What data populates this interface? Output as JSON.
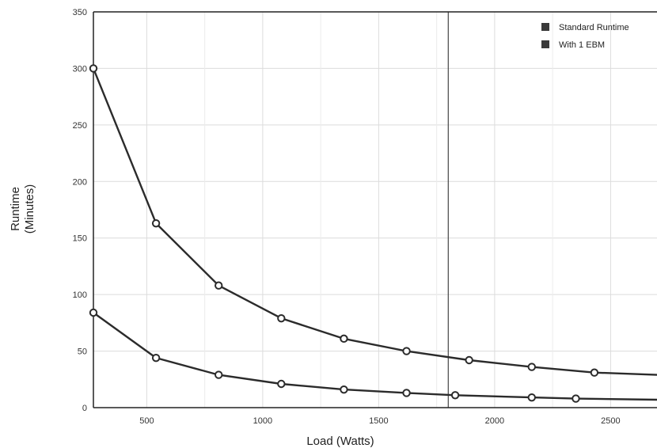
{
  "chart_data": {
    "type": "line",
    "xlabel": "Load (Watts)",
    "ylabel": [
      "Runtime",
      "(Minutes)"
    ],
    "xlim": [
      270,
      2700
    ],
    "ylim": [
      0,
      350
    ],
    "x_ticks": [
      500,
      1000,
      1500,
      2000,
      2500
    ],
    "y_ticks": [
      0,
      50,
      100,
      150,
      200,
      250,
      300,
      350
    ],
    "grid": true,
    "legend_position": "top-right",
    "vertical_reference_x": 1800,
    "series": [
      {
        "name": "Standard Runtime",
        "color": "#2b2b2b",
        "points": [
          [
            270,
            84
          ],
          [
            540,
            44
          ],
          [
            810,
            29
          ],
          [
            1080,
            21
          ],
          [
            1350,
            16
          ],
          [
            1620,
            13
          ],
          [
            1830,
            11
          ],
          [
            2160,
            9
          ],
          [
            2350,
            8
          ],
          [
            2700,
            7
          ]
        ],
        "markers": [
          true,
          true,
          true,
          true,
          true,
          true,
          true,
          true,
          true,
          false
        ]
      },
      {
        "name": "With 1 EBM",
        "color": "#2b2b2b",
        "points": [
          [
            270,
            300
          ],
          [
            540,
            163
          ],
          [
            810,
            108
          ],
          [
            1080,
            79
          ],
          [
            1350,
            61
          ],
          [
            1620,
            50
          ],
          [
            1890,
            42
          ],
          [
            2160,
            36
          ],
          [
            2430,
            31
          ],
          [
            2700,
            29
          ]
        ],
        "markers": [
          true,
          true,
          true,
          true,
          true,
          true,
          true,
          true,
          true,
          false
        ]
      }
    ]
  }
}
